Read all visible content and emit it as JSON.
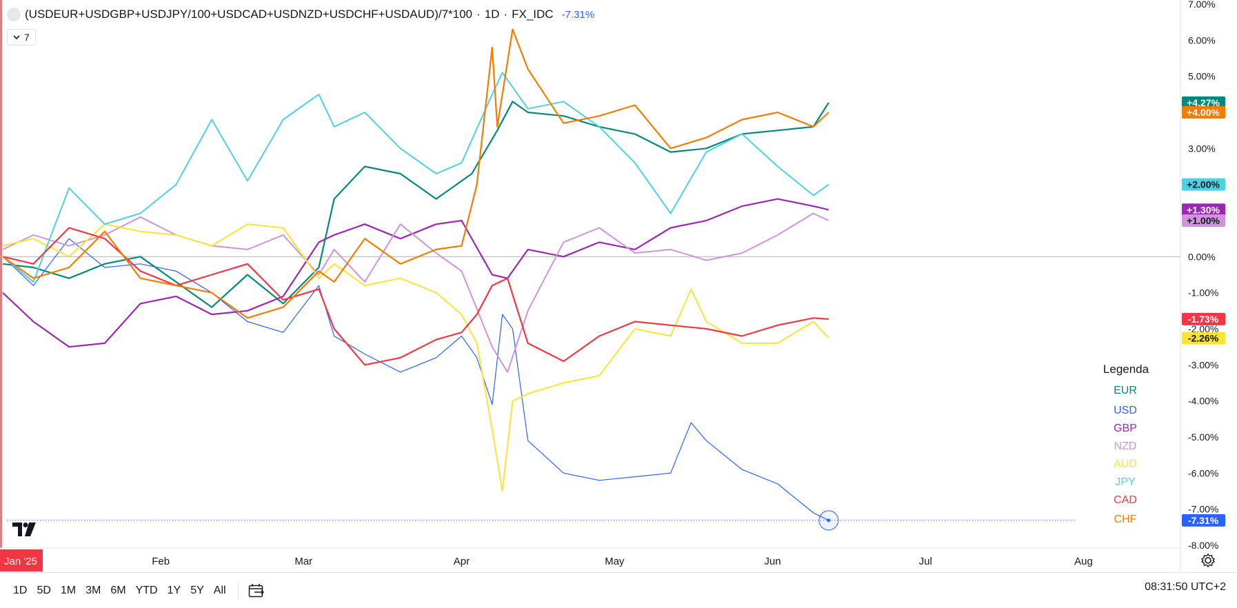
{
  "header": {
    "symbol": "(USDEUR+USDGBP+USDJPY/100+USDCAD+USDNZD+USDCHF+USDAUD)/7*100",
    "interval": "1D",
    "exchange": "FX_IDC",
    "change": "-7.31%",
    "change_color": "#2962ff",
    "indicators_count": "7"
  },
  "toolbar": {
    "ranges": [
      "1D",
      "5D",
      "1M",
      "3M",
      "6M",
      "YTD",
      "1Y",
      "5Y",
      "All"
    ],
    "clock": "08:31:50 UTC+2"
  },
  "icons": {
    "logo": "tradingview-logo-icon",
    "calendar": "calendar-goto-icon",
    "settings": "gear-icon",
    "indicators_toggle": "chevron-down-icon"
  },
  "chart_data": {
    "type": "line",
    "ylabel": "",
    "xlabel": "",
    "ylim": [
      -8,
      7
    ],
    "y_ticks": [
      "7.00%",
      "6.00%",
      "5.00%",
      "4.00%",
      "3.00%",
      "2.00%",
      "1.00%",
      "0.00%",
      "-1.00%",
      "-2.00%",
      "-3.00%",
      "-4.00%",
      "-5.00%",
      "-6.00%",
      "-7.00%",
      "-8.00%"
    ],
    "x_labels": [
      {
        "label": "Jan '25",
        "date": "2025-01-01",
        "highlight": true
      },
      {
        "label": "Feb",
        "date": "2025-02-01"
      },
      {
        "label": "Mar",
        "date": "2025-03-01"
      },
      {
        "label": "Apr",
        "date": "2025-04-01"
      },
      {
        "label": "May",
        "date": "2025-05-01"
      },
      {
        "label": "Jun",
        "date": "2025-06-01"
      },
      {
        "label": "Jul",
        "date": "2025-07-01"
      },
      {
        "label": "Aug",
        "date": "2025-08-01"
      }
    ],
    "x_range": [
      "2025-01-01",
      "2025-08-15"
    ],
    "zero_line": 0,
    "grid": false,
    "legend_title": "Legenda",
    "legend_position": "right",
    "series": [
      {
        "name": "EUR",
        "color": "#00897b",
        "width": 2.2,
        "last_label": "+4.27%",
        "points": [
          [
            "2025-01-01",
            -0.2
          ],
          [
            "2025-01-07",
            -0.3
          ],
          [
            "2025-01-14",
            -0.6
          ],
          [
            "2025-01-21",
            -0.2
          ],
          [
            "2025-01-28",
            0.0
          ],
          [
            "2025-02-04",
            -0.7
          ],
          [
            "2025-02-11",
            -1.4
          ],
          [
            "2025-02-18",
            -0.5
          ],
          [
            "2025-02-25",
            -1.3
          ],
          [
            "2025-03-04",
            -0.3
          ],
          [
            "2025-03-07",
            1.6
          ],
          [
            "2025-03-13",
            2.5
          ],
          [
            "2025-03-20",
            2.3
          ],
          [
            "2025-03-27",
            1.6
          ],
          [
            "2025-04-03",
            2.3
          ],
          [
            "2025-04-08",
            3.5
          ],
          [
            "2025-04-11",
            4.3
          ],
          [
            "2025-04-14",
            4.0
          ],
          [
            "2025-04-21",
            3.9
          ],
          [
            "2025-04-28",
            3.6
          ],
          [
            "2025-05-05",
            3.4
          ],
          [
            "2025-05-12",
            2.9
          ],
          [
            "2025-05-19",
            3.0
          ],
          [
            "2025-05-26",
            3.4
          ],
          [
            "2025-06-02",
            3.5
          ],
          [
            "2025-06-09",
            3.6
          ],
          [
            "2025-06-12",
            4.27
          ]
        ]
      },
      {
        "name": "USD",
        "color": "#2962ff",
        "width": 1.2,
        "last_label": "-7.31%",
        "points": [
          [
            "2025-01-01",
            0.0
          ],
          [
            "2025-01-07",
            -0.8
          ],
          [
            "2025-01-14",
            0.5
          ],
          [
            "2025-01-21",
            -0.3
          ],
          [
            "2025-01-28",
            -0.2
          ],
          [
            "2025-02-04",
            -0.4
          ],
          [
            "2025-02-11",
            -1.0
          ],
          [
            "2025-02-18",
            -1.8
          ],
          [
            "2025-02-25",
            -2.1
          ],
          [
            "2025-03-04",
            -0.8
          ],
          [
            "2025-03-07",
            -2.2
          ],
          [
            "2025-03-13",
            -2.7
          ],
          [
            "2025-03-20",
            -3.2
          ],
          [
            "2025-03-27",
            -2.8
          ],
          [
            "2025-04-01",
            -2.2
          ],
          [
            "2025-04-04",
            -2.8
          ],
          [
            "2025-04-07",
            -4.1
          ],
          [
            "2025-04-09",
            -1.6
          ],
          [
            "2025-04-11",
            -2.0
          ],
          [
            "2025-04-14",
            -5.1
          ],
          [
            "2025-04-21",
            -6.0
          ],
          [
            "2025-04-28",
            -6.2
          ],
          [
            "2025-05-05",
            -6.1
          ],
          [
            "2025-05-12",
            -6.0
          ],
          [
            "2025-05-16",
            -4.6
          ],
          [
            "2025-05-19",
            -5.1
          ],
          [
            "2025-05-26",
            -5.9
          ],
          [
            "2025-06-02",
            -6.3
          ],
          [
            "2025-06-09",
            -7.1
          ],
          [
            "2025-06-12",
            -7.31
          ]
        ]
      },
      {
        "name": "GBP",
        "color": "#9c27b0",
        "width": 2.2,
        "last_label": "+1.30%",
        "points": [
          [
            "2025-01-01",
            -1.0
          ],
          [
            "2025-01-07",
            -1.8
          ],
          [
            "2025-01-14",
            -2.5
          ],
          [
            "2025-01-21",
            -2.4
          ],
          [
            "2025-01-28",
            -1.3
          ],
          [
            "2025-02-04",
            -1.1
          ],
          [
            "2025-02-11",
            -1.6
          ],
          [
            "2025-02-18",
            -1.5
          ],
          [
            "2025-02-25",
            -1.1
          ],
          [
            "2025-03-04",
            0.4
          ],
          [
            "2025-03-07",
            0.6
          ],
          [
            "2025-03-13",
            0.9
          ],
          [
            "2025-03-20",
            0.5
          ],
          [
            "2025-03-27",
            0.9
          ],
          [
            "2025-04-01",
            1.0
          ],
          [
            "2025-04-07",
            -0.5
          ],
          [
            "2025-04-10",
            -0.6
          ],
          [
            "2025-04-14",
            0.2
          ],
          [
            "2025-04-21",
            0.0
          ],
          [
            "2025-04-28",
            0.4
          ],
          [
            "2025-05-05",
            0.2
          ],
          [
            "2025-05-12",
            0.8
          ],
          [
            "2025-05-19",
            1.0
          ],
          [
            "2025-05-26",
            1.4
          ],
          [
            "2025-06-02",
            1.6
          ],
          [
            "2025-06-09",
            1.4
          ],
          [
            "2025-06-12",
            1.3
          ]
        ]
      },
      {
        "name": "NZD",
        "color": "#ce93d8",
        "width": 2.0,
        "last_label": "+1.00%",
        "points": [
          [
            "2025-01-01",
            0.2
          ],
          [
            "2025-01-07",
            0.6
          ],
          [
            "2025-01-14",
            0.3
          ],
          [
            "2025-01-21",
            0.6
          ],
          [
            "2025-01-28",
            1.1
          ],
          [
            "2025-02-04",
            0.6
          ],
          [
            "2025-02-11",
            0.3
          ],
          [
            "2025-02-18",
            0.2
          ],
          [
            "2025-02-25",
            0.6
          ],
          [
            "2025-03-04",
            -0.5
          ],
          [
            "2025-03-07",
            0.2
          ],
          [
            "2025-03-13",
            -0.7
          ],
          [
            "2025-03-20",
            0.9
          ],
          [
            "2025-03-27",
            0.1
          ],
          [
            "2025-04-01",
            -0.4
          ],
          [
            "2025-04-07",
            -2.5
          ],
          [
            "2025-04-10",
            -3.2
          ],
          [
            "2025-04-14",
            -1.5
          ],
          [
            "2025-04-21",
            0.4
          ],
          [
            "2025-04-28",
            0.8
          ],
          [
            "2025-05-05",
            0.1
          ],
          [
            "2025-05-12",
            0.2
          ],
          [
            "2025-05-19",
            -0.1
          ],
          [
            "2025-05-26",
            0.1
          ],
          [
            "2025-06-02",
            0.6
          ],
          [
            "2025-06-09",
            1.2
          ],
          [
            "2025-06-12",
            1.0
          ]
        ]
      },
      {
        "name": "AUD",
        "color": "#fbe431",
        "width": 2.0,
        "last_label": "-2.26%",
        "points": [
          [
            "2025-01-01",
            0.3
          ],
          [
            "2025-01-07",
            0.5
          ],
          [
            "2025-01-14",
            0.0
          ],
          [
            "2025-01-21",
            0.9
          ],
          [
            "2025-01-28",
            0.7
          ],
          [
            "2025-02-04",
            0.6
          ],
          [
            "2025-02-11",
            0.3
          ],
          [
            "2025-02-18",
            0.9
          ],
          [
            "2025-02-25",
            0.8
          ],
          [
            "2025-03-04",
            -0.6
          ],
          [
            "2025-03-07",
            -0.2
          ],
          [
            "2025-03-13",
            -0.8
          ],
          [
            "2025-03-20",
            -0.6
          ],
          [
            "2025-03-27",
            -1.0
          ],
          [
            "2025-04-01",
            -1.6
          ],
          [
            "2025-04-04",
            -2.4
          ],
          [
            "2025-04-07",
            -4.8
          ],
          [
            "2025-04-09",
            -6.5
          ],
          [
            "2025-04-11",
            -4.0
          ],
          [
            "2025-04-14",
            -3.8
          ],
          [
            "2025-04-21",
            -3.5
          ],
          [
            "2025-04-28",
            -3.3
          ],
          [
            "2025-05-05",
            -2.0
          ],
          [
            "2025-05-12",
            -2.2
          ],
          [
            "2025-05-16",
            -0.9
          ],
          [
            "2025-05-19",
            -1.8
          ],
          [
            "2025-05-26",
            -2.4
          ],
          [
            "2025-06-02",
            -2.4
          ],
          [
            "2025-06-09",
            -1.8
          ],
          [
            "2025-06-12",
            -2.26
          ]
        ]
      },
      {
        "name": "JPY",
        "color": "#4dd0e1",
        "width": 2.0,
        "last_label": "+2.00%",
        "points": [
          [
            "2025-01-01",
            0.0
          ],
          [
            "2025-01-07",
            -0.7
          ],
          [
            "2025-01-14",
            1.9
          ],
          [
            "2025-01-21",
            0.9
          ],
          [
            "2025-01-28",
            1.2
          ],
          [
            "2025-02-04",
            2.0
          ],
          [
            "2025-02-11",
            3.8
          ],
          [
            "2025-02-18",
            2.1
          ],
          [
            "2025-02-25",
            3.8
          ],
          [
            "2025-03-04",
            4.5
          ],
          [
            "2025-03-07",
            3.6
          ],
          [
            "2025-03-13",
            4.0
          ],
          [
            "2025-03-20",
            3.0
          ],
          [
            "2025-03-27",
            2.3
          ],
          [
            "2025-04-01",
            2.6
          ],
          [
            "2025-04-07",
            4.5
          ],
          [
            "2025-04-09",
            5.1
          ],
          [
            "2025-04-14",
            4.1
          ],
          [
            "2025-04-21",
            4.3
          ],
          [
            "2025-04-28",
            3.6
          ],
          [
            "2025-05-05",
            2.6
          ],
          [
            "2025-05-12",
            1.2
          ],
          [
            "2025-05-19",
            2.9
          ],
          [
            "2025-05-26",
            3.4
          ],
          [
            "2025-06-02",
            2.5
          ],
          [
            "2025-06-09",
            1.7
          ],
          [
            "2025-06-12",
            2.0
          ]
        ]
      },
      {
        "name": "CAD",
        "color": "#f23645",
        "width": 2.2,
        "last_label": "-1.73%",
        "points": [
          [
            "2025-01-01",
            0.0
          ],
          [
            "2025-01-07",
            -0.2
          ],
          [
            "2025-01-14",
            0.8
          ],
          [
            "2025-01-21",
            0.5
          ],
          [
            "2025-01-28",
            -0.4
          ],
          [
            "2025-02-04",
            -0.8
          ],
          [
            "2025-02-11",
            -0.5
          ],
          [
            "2025-02-18",
            -0.2
          ],
          [
            "2025-02-25",
            -1.2
          ],
          [
            "2025-03-04",
            -0.9
          ],
          [
            "2025-03-07",
            -2.0
          ],
          [
            "2025-03-13",
            -3.0
          ],
          [
            "2025-03-20",
            -2.8
          ],
          [
            "2025-03-27",
            -2.3
          ],
          [
            "2025-04-01",
            -2.1
          ],
          [
            "2025-04-04",
            -1.6
          ],
          [
            "2025-04-07",
            -0.8
          ],
          [
            "2025-04-10",
            -0.6
          ],
          [
            "2025-04-14",
            -2.4
          ],
          [
            "2025-04-21",
            -2.9
          ],
          [
            "2025-04-28",
            -2.2
          ],
          [
            "2025-05-05",
            -1.8
          ],
          [
            "2025-05-12",
            -1.9
          ],
          [
            "2025-05-19",
            -2.0
          ],
          [
            "2025-05-26",
            -2.2
          ],
          [
            "2025-06-02",
            -1.9
          ],
          [
            "2025-06-09",
            -1.7
          ],
          [
            "2025-06-12",
            -1.73
          ]
        ]
      },
      {
        "name": "CHF",
        "color": "#f57c00",
        "width": 2.2,
        "last_label": "+4.00%",
        "points": [
          [
            "2025-01-01",
            0.0
          ],
          [
            "2025-01-07",
            -0.6
          ],
          [
            "2025-01-14",
            -0.3
          ],
          [
            "2025-01-21",
            0.7
          ],
          [
            "2025-01-28",
            -0.6
          ],
          [
            "2025-02-04",
            -0.8
          ],
          [
            "2025-02-11",
            -1.0
          ],
          [
            "2025-02-18",
            -1.7
          ],
          [
            "2025-02-25",
            -1.4
          ],
          [
            "2025-03-04",
            -0.4
          ],
          [
            "2025-03-07",
            -0.7
          ],
          [
            "2025-03-13",
            0.5
          ],
          [
            "2025-03-20",
            -0.2
          ],
          [
            "2025-03-27",
            0.2
          ],
          [
            "2025-04-01",
            0.3
          ],
          [
            "2025-04-04",
            2.0
          ],
          [
            "2025-04-07",
            5.8
          ],
          [
            "2025-04-08",
            3.6
          ],
          [
            "2025-04-11",
            6.3
          ],
          [
            "2025-04-14",
            5.2
          ],
          [
            "2025-04-21",
            3.7
          ],
          [
            "2025-04-28",
            3.9
          ],
          [
            "2025-05-05",
            4.2
          ],
          [
            "2025-05-12",
            3.0
          ],
          [
            "2025-05-19",
            3.3
          ],
          [
            "2025-05-26",
            3.8
          ],
          [
            "2025-06-02",
            4.0
          ],
          [
            "2025-06-09",
            3.6
          ],
          [
            "2025-06-12",
            4.0
          ]
        ]
      }
    ]
  }
}
